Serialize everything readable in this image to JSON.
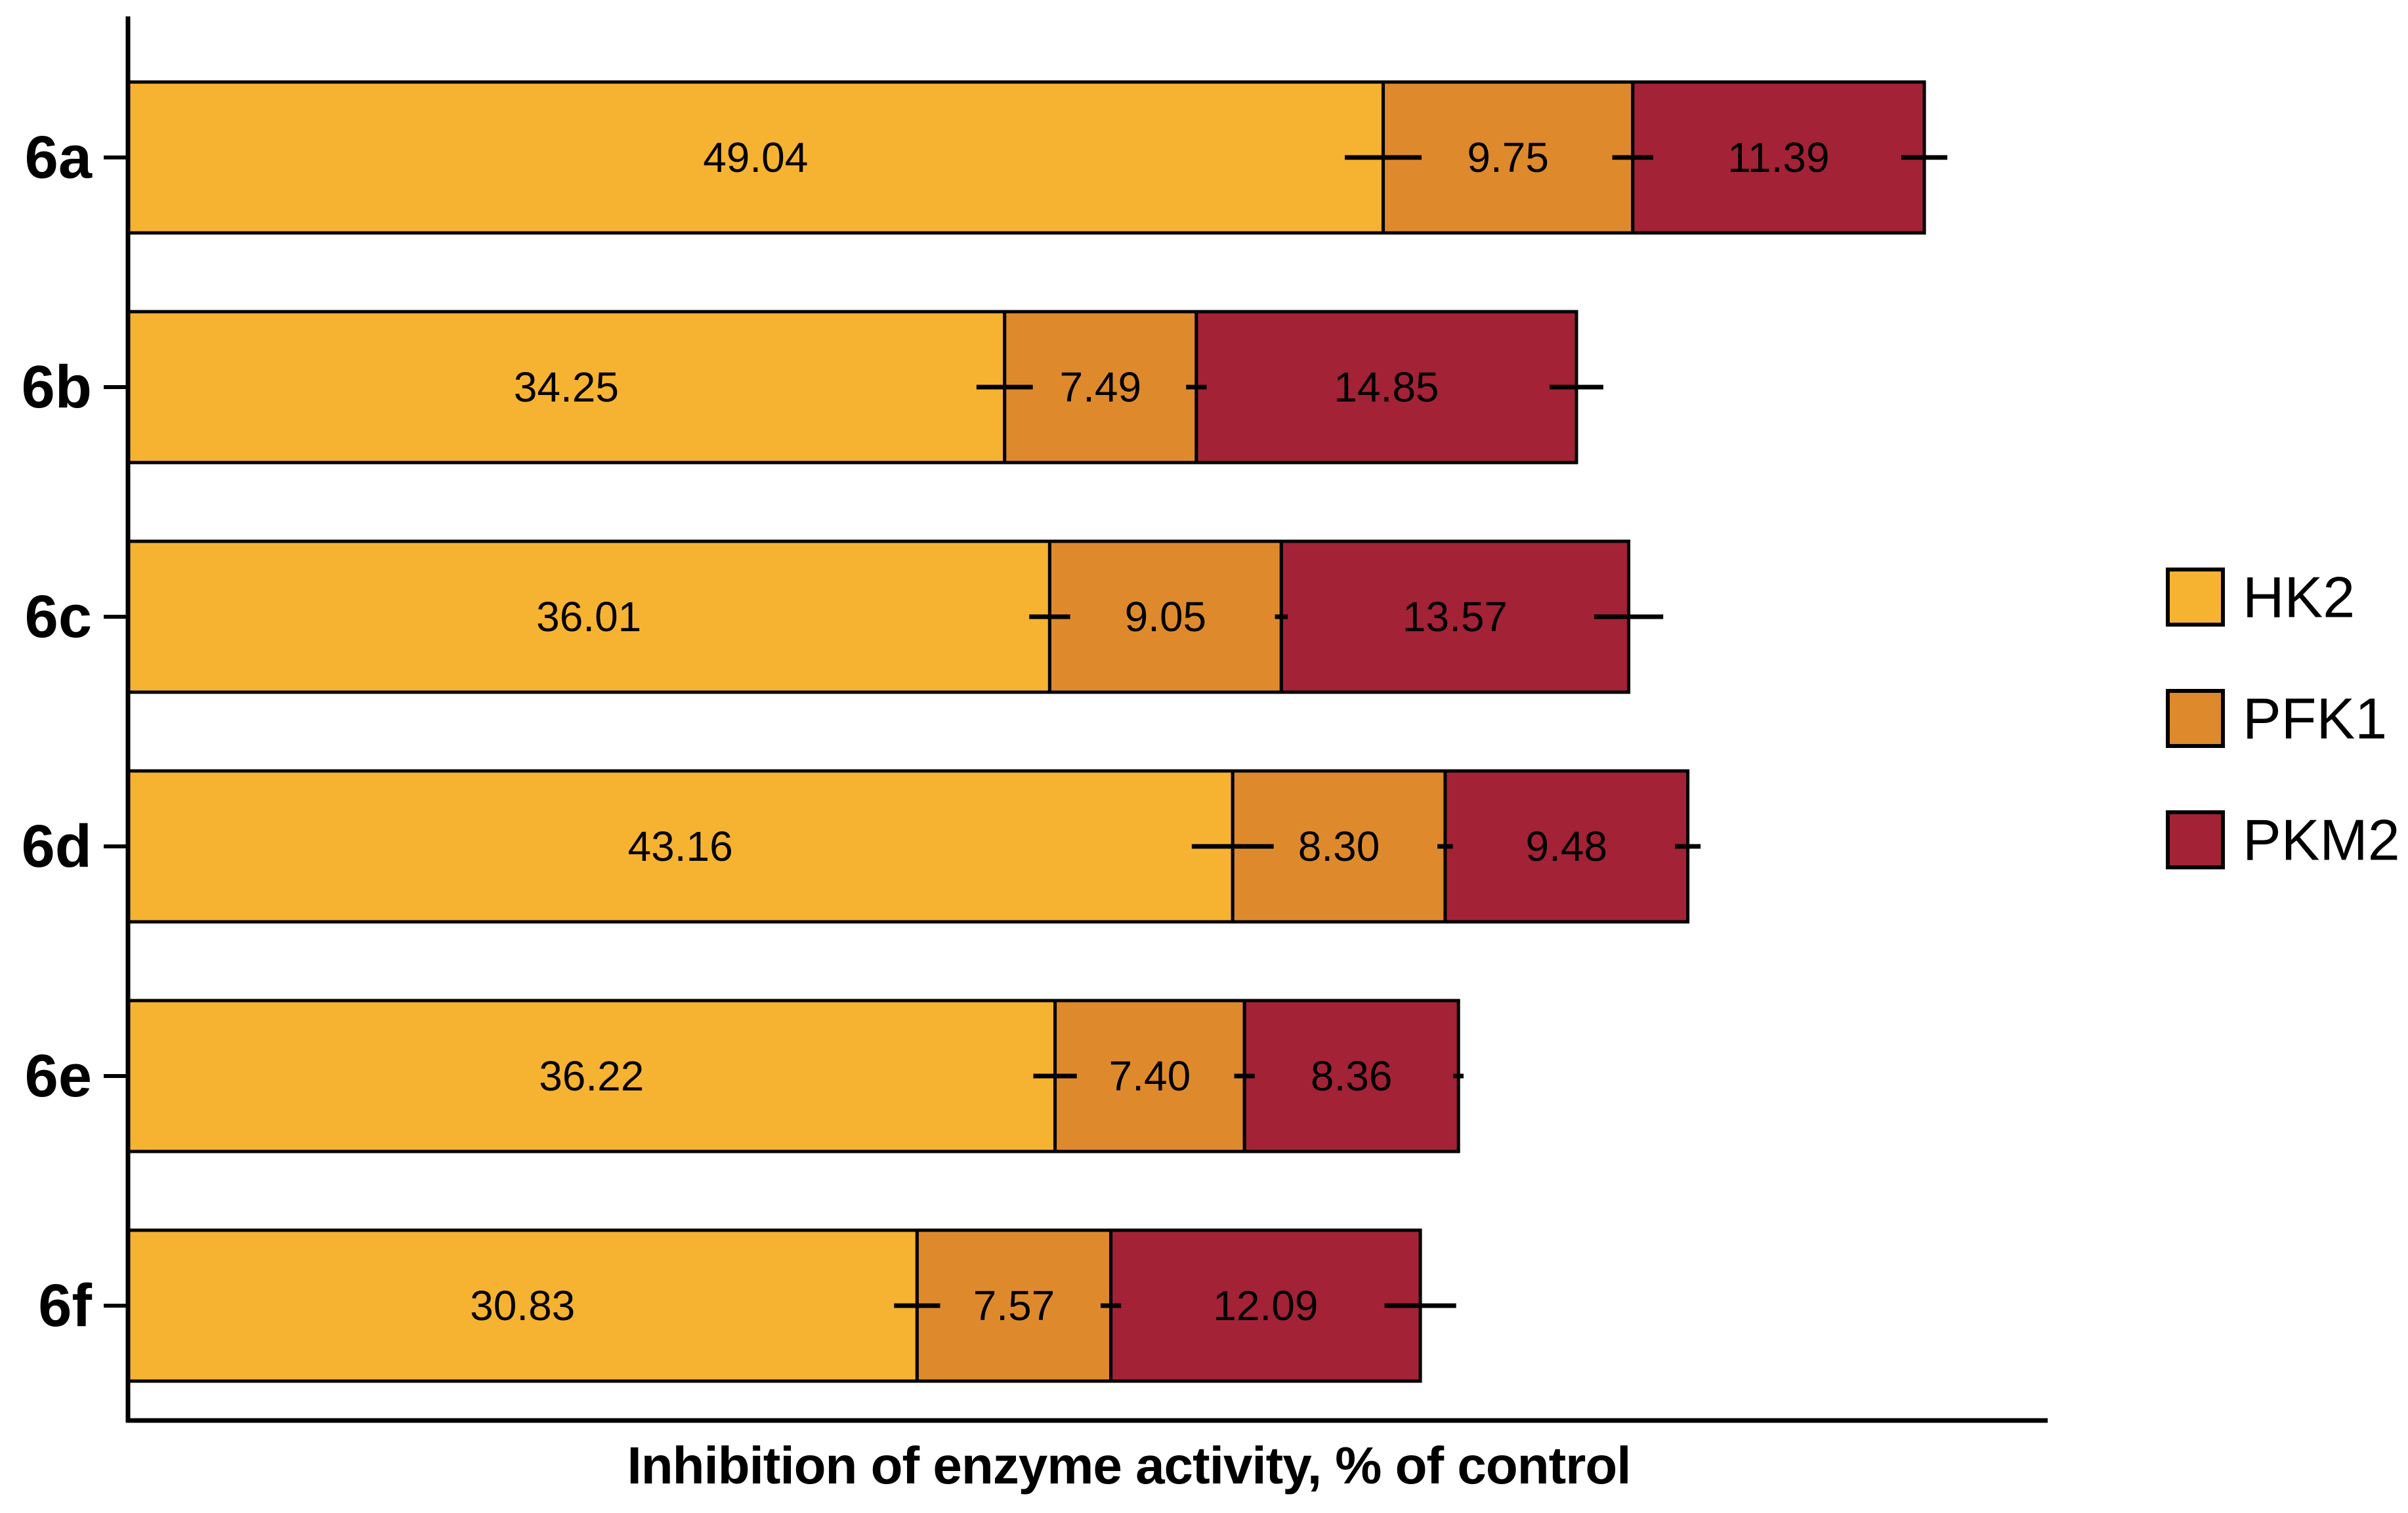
{
  "chart_data": {
    "type": "bar",
    "orientation": "horizontal",
    "stacked": true,
    "title": "",
    "xlabel": "Inhibition of enzyme activity, % of control",
    "ylabel": "",
    "xlim": [
      0,
      75
    ],
    "grid": false,
    "legend_position": "right-center",
    "background_color": "#ffffff",
    "axis_color": "#000000",
    "text_color": "#000000",
    "bar_border_color": "#000000",
    "categories": [
      "6a",
      "6b",
      "6c",
      "6d",
      "6e",
      "6f"
    ],
    "series": [
      {
        "name": "HK2",
        "color": "#F6B231",
        "values": [
          49.04,
          34.25,
          36.01,
          43.16,
          36.22,
          30.83
        ],
        "labels": [
          "49.04",
          "34.25",
          "36.01",
          "43.16",
          "36.22",
          "30.83"
        ],
        "errors": [
          1.5,
          1.1,
          0.8,
          1.6,
          0.85,
          0.9
        ]
      },
      {
        "name": "PFK1",
        "color": "#DE8A2C",
        "values": [
          9.75,
          7.49,
          9.05,
          8.3,
          7.4,
          7.57
        ],
        "labels": [
          "9.75",
          "7.49",
          "9.05",
          "8.30",
          "7.40",
          "7.57"
        ],
        "errors": [
          0.8,
          0.4,
          0.25,
          0.3,
          0.4,
          0.4
        ]
      },
      {
        "name": "PKM2",
        "color": "#A32236",
        "values": [
          11.39,
          14.85,
          13.57,
          9.48,
          8.36,
          12.09
        ],
        "labels": [
          "11.39",
          "14.85",
          "13.57",
          "9.48",
          "8.36",
          "12.09"
        ],
        "errors": [
          0.9,
          1.05,
          1.35,
          0.5,
          0.2,
          1.4
        ]
      }
    ]
  }
}
